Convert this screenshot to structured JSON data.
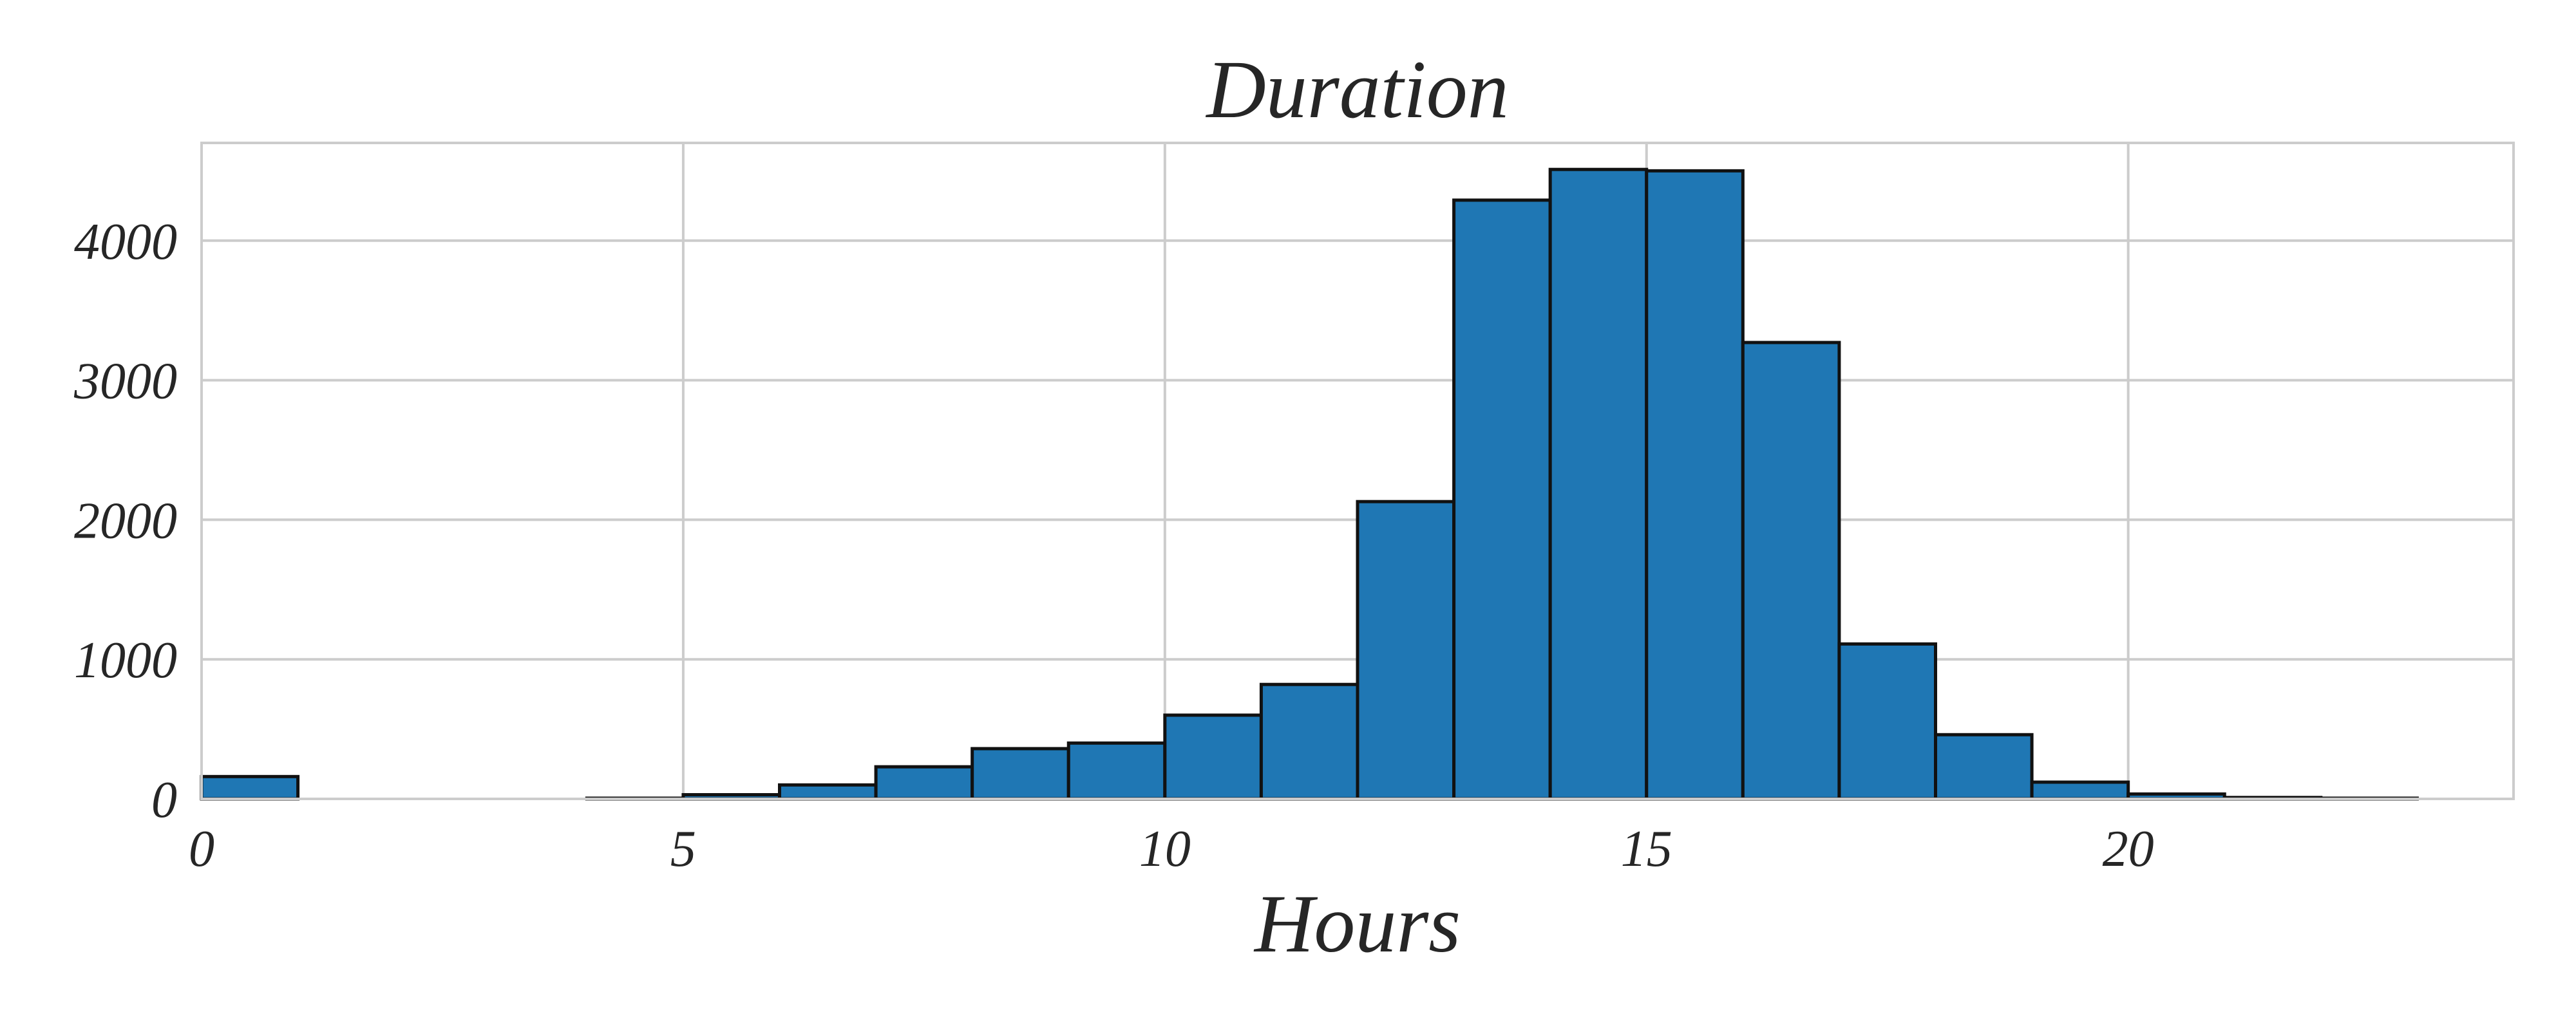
{
  "chart_data": {
    "type": "bar",
    "title": "Duration",
    "xlabel": "Hours",
    "ylabel": "",
    "bin_width": 1,
    "bins": [
      {
        "x0": 0,
        "x1": 1,
        "count": 160
      },
      {
        "x0": 1,
        "x1": 2,
        "count": 0
      },
      {
        "x0": 2,
        "x1": 3,
        "count": 0
      },
      {
        "x0": 3,
        "x1": 4,
        "count": 0
      },
      {
        "x0": 4,
        "x1": 5,
        "count": 5
      },
      {
        "x0": 5,
        "x1": 6,
        "count": 30
      },
      {
        "x0": 6,
        "x1": 7,
        "count": 100
      },
      {
        "x0": 7,
        "x1": 8,
        "count": 230
      },
      {
        "x0": 8,
        "x1": 9,
        "count": 360
      },
      {
        "x0": 9,
        "x1": 10,
        "count": 400
      },
      {
        "x0": 10,
        "x1": 11,
        "count": 600
      },
      {
        "x0": 11,
        "x1": 12,
        "count": 820
      },
      {
        "x0": 12,
        "x1": 13,
        "count": 2130
      },
      {
        "x0": 13,
        "x1": 14,
        "count": 4290
      },
      {
        "x0": 14,
        "x1": 15,
        "count": 4510
      },
      {
        "x0": 15,
        "x1": 16,
        "count": 4500
      },
      {
        "x0": 16,
        "x1": 17,
        "count": 3270
      },
      {
        "x0": 17,
        "x1": 18,
        "count": 1110
      },
      {
        "x0": 18,
        "x1": 19,
        "count": 460
      },
      {
        "x0": 19,
        "x1": 20,
        "count": 120
      },
      {
        "x0": 20,
        "x1": 21,
        "count": 35
      },
      {
        "x0": 21,
        "x1": 22,
        "count": 10
      },
      {
        "x0": 22,
        "x1": 23,
        "count": 5
      }
    ],
    "xlim": [
      0,
      24
    ],
    "ylim": [
      0,
      4700
    ],
    "xticks": [
      0,
      5,
      10,
      15,
      20
    ],
    "xtick_labels": [
      "0",
      "5",
      "10",
      "15",
      "20"
    ],
    "yticks": [
      0,
      1000,
      2000,
      3000,
      4000
    ],
    "ytick_labels": [
      "0",
      "1000",
      "2000",
      "3000",
      "4000"
    ],
    "grid": true,
    "colors": {
      "bar": "#1f77b4",
      "edge": "#111111",
      "grid": "#cccccc"
    }
  }
}
